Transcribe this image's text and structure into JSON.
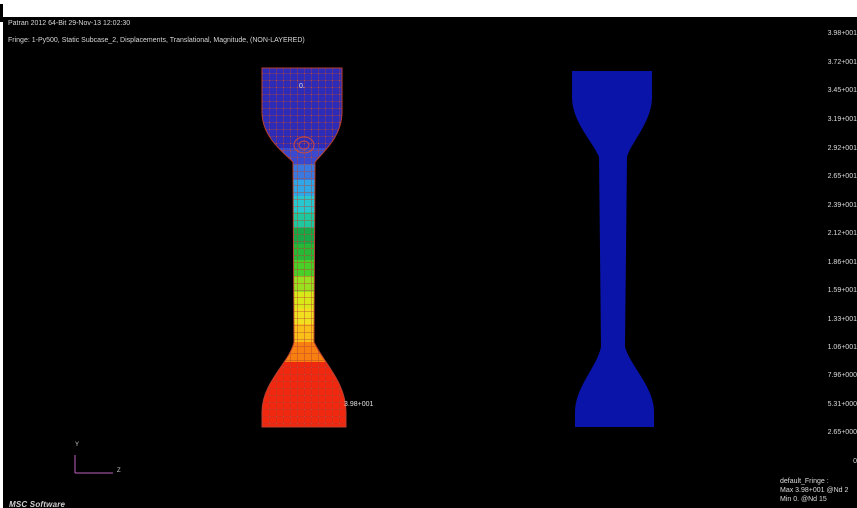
{
  "header": {
    "version_line": "Patran 2012 64-Bit 29-Nov-13 12:02:30",
    "fringe_line": "Fringe: 1-Py500, Static Subcase_2, Displacements, Translational, Magnitude, (NON-LAYERED)"
  },
  "scale": {
    "ticks": [
      "3.98+001",
      "3.72+001",
      "3.45+001",
      "3.19+001",
      "2.92+001",
      "2.65+001",
      "2.39+001",
      "2.12+001",
      "1.86+001",
      "1.59+001",
      "1.33+001",
      "1.06+001",
      "7.96+000",
      "5.31+000",
      "2.65+000",
      "0"
    ]
  },
  "legend": {
    "name": "default_Fringe :",
    "max": "Max 3.98+001 @Nd 2",
    "min": "Min 0. @Nd 15"
  },
  "model": {
    "origin_label": "0.",
    "max_label": "3.98+001"
  },
  "triad": {
    "y": "Y",
    "z": "Z"
  },
  "brand": {
    "logo_text": "MSC Software"
  },
  "colors": {
    "background": "#000000",
    "fringe_top": "#2020c0",
    "fringe_bottom": "#ff2200",
    "undeformed": "#0a14a8",
    "mesh_line": "#c04030"
  }
}
